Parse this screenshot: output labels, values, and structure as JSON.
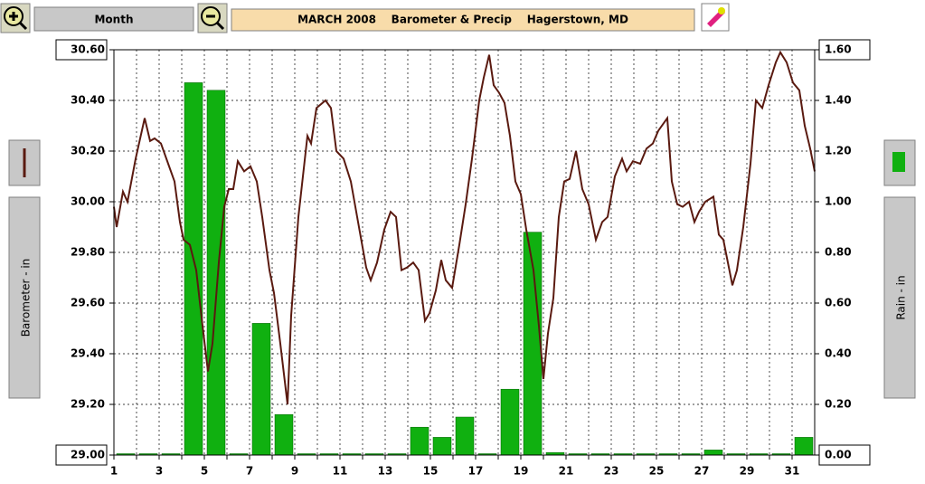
{
  "toolbar": {
    "button": "Month"
  },
  "chart_data": {
    "type": "combo",
    "title": "MARCH 2008    Barometer & Precip    Hagerstown, MD",
    "y_label": "Barometer - in",
    "y2_label": "Rain - in",
    "xlim": [
      1,
      32
    ],
    "xticks": [
      1,
      3,
      5,
      7,
      9,
      11,
      13,
      15,
      17,
      19,
      21,
      23,
      25,
      27,
      29,
      31
    ],
    "xminorticks": [
      2,
      4,
      6,
      8,
      10,
      12,
      14,
      16,
      18,
      20,
      22,
      24,
      26,
      28,
      30
    ],
    "ylim": [
      29,
      30.6
    ],
    "yticks": [
      {
        "value": 29,
        "label": "29.00"
      },
      {
        "value": 29.2,
        "label": "29.20"
      },
      {
        "value": 29.4,
        "label": "29.40"
      },
      {
        "value": 29.6,
        "label": "29.60"
      },
      {
        "value": 29.8,
        "label": "29.80"
      },
      {
        "value": 30,
        "label": "30.00"
      },
      {
        "value": 30.2,
        "label": "30.20"
      },
      {
        "value": 30.4,
        "label": "30.40"
      },
      {
        "value": 30.6,
        "label": "30.60"
      }
    ],
    "y2lim": [
      0,
      1.6
    ],
    "y2ticks": [
      {
        "value": 0,
        "label": "0.00"
      },
      {
        "value": 0.2,
        "label": "0.20"
      },
      {
        "value": 0.4,
        "label": "0.40"
      },
      {
        "value": 0.6,
        "label": "0.60"
      },
      {
        "value": 0.8,
        "label": "0.80"
      },
      {
        "value": 1,
        "label": "1.00"
      },
      {
        "value": 1.2,
        "label": "1.20"
      },
      {
        "value": 1.4,
        "label": "1.40"
      },
      {
        "value": 1.6,
        "label": "1.60"
      }
    ],
    "grid": true,
    "series": [
      {
        "type": "bar",
        "axis": "y2",
        "color": "#10b010",
        "x": [
          1,
          2,
          3,
          4,
          5,
          6,
          7,
          8,
          9,
          10,
          11,
          12,
          13,
          14,
          15,
          16,
          17,
          18,
          19,
          20,
          21,
          22,
          23,
          24,
          25,
          26,
          27,
          28,
          29,
          30,
          31
        ],
        "values": [
          0,
          0,
          0,
          1.47,
          1.44,
          0,
          0.52,
          0.16,
          0,
          0,
          0,
          0,
          0,
          0.11,
          0.07,
          0.15,
          0,
          0.26,
          0.88,
          0.01,
          0,
          0,
          0,
          0,
          0,
          0,
          0.02,
          0,
          0,
          0,
          0.07
        ]
      },
      {
        "type": "line",
        "axis": "y",
        "color": "#5a1a10",
        "x": [
          1.0,
          1.12,
          1.4,
          1.6,
          1.96,
          2.36,
          2.6,
          2.8,
          3.08,
          3.4,
          3.68,
          3.92,
          4.08,
          4.36,
          4.64,
          4.92,
          5.16,
          5.36,
          5.64,
          5.88,
          6.08,
          6.28,
          6.48,
          6.76,
          7.04,
          7.32,
          7.56,
          7.88,
          8.08,
          8.36,
          8.68,
          8.84,
          9.16,
          9.56,
          9.72,
          9.96,
          10.36,
          10.6,
          10.84,
          11.16,
          11.48,
          11.84,
          12.16,
          12.36,
          12.64,
          12.96,
          13.24,
          13.48,
          13.72,
          13.96,
          14.24,
          14.48,
          14.76,
          14.96,
          15.24,
          15.48,
          15.68,
          15.96,
          16.28,
          16.56,
          16.84,
          17.16,
          17.36,
          17.6,
          17.8,
          18.04,
          18.28,
          18.52,
          18.76,
          19.0,
          19.24,
          19.56,
          19.8,
          20.0,
          20.2,
          20.44,
          20.68,
          20.92,
          21.16,
          21.44,
          21.72,
          22.0,
          22.32,
          22.6,
          22.84,
          23.16,
          23.48,
          23.68,
          23.96,
          24.28,
          24.56,
          24.84,
          25.08,
          25.48,
          25.68,
          25.92,
          26.16,
          26.44,
          26.68,
          26.88,
          27.16,
          27.52,
          27.76,
          27.96,
          28.36,
          28.56,
          28.84,
          29.16,
          29.4,
          29.68,
          29.96,
          30.28,
          30.48,
          30.76,
          31.04,
          31.32,
          31.56,
          31.8,
          32.0
        ],
        "values": [
          29.98,
          29.9,
          30.04,
          30.0,
          30.17,
          30.33,
          30.24,
          30.25,
          30.23,
          30.15,
          30.08,
          29.92,
          29.85,
          29.83,
          29.73,
          29.51,
          29.33,
          29.44,
          29.76,
          29.98,
          30.05,
          30.05,
          30.16,
          30.12,
          30.14,
          30.08,
          29.94,
          29.73,
          29.64,
          29.44,
          29.2,
          29.55,
          29.94,
          30.26,
          30.23,
          30.37,
          30.4,
          30.37,
          30.2,
          30.17,
          30.08,
          29.9,
          29.74,
          29.69,
          29.76,
          29.89,
          29.96,
          29.94,
          29.73,
          29.74,
          29.76,
          29.73,
          29.53,
          29.56,
          29.65,
          29.77,
          29.69,
          29.66,
          29.83,
          29.99,
          30.17,
          30.4,
          30.49,
          30.58,
          30.46,
          30.43,
          30.39,
          30.26,
          30.08,
          30.03,
          29.89,
          29.73,
          29.51,
          29.3,
          29.48,
          29.62,
          29.94,
          30.08,
          30.09,
          30.2,
          30.05,
          29.99,
          29.85,
          29.92,
          29.94,
          30.1,
          30.17,
          30.12,
          30.16,
          30.15,
          30.21,
          30.23,
          30.28,
          30.33,
          30.08,
          29.99,
          29.98,
          30.0,
          29.92,
          29.96,
          30.0,
          30.02,
          29.87,
          29.85,
          29.67,
          29.73,
          29.9,
          30.15,
          30.4,
          30.37,
          30.46,
          30.55,
          30.59,
          30.55,
          30.47,
          30.44,
          30.3,
          30.21,
          30.12
        ]
      }
    ]
  }
}
